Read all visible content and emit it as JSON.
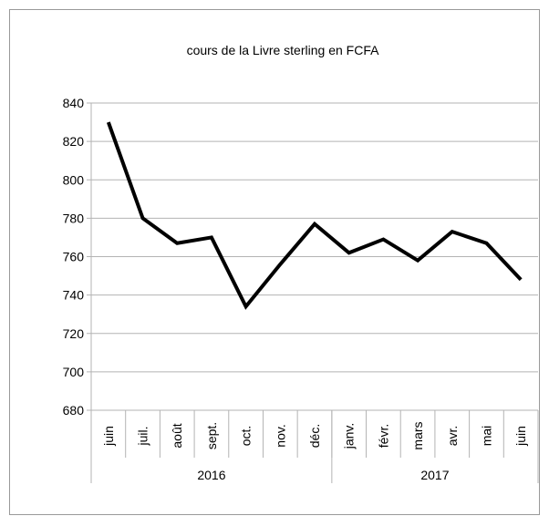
{
  "chart_data": {
    "type": "line",
    "title": "cours de la Livre sterling en FCFA",
    "categories": [
      "juin",
      "juil.",
      "août",
      "sept.",
      "oct.",
      "nov.",
      "déc.",
      "janv.",
      "févr.",
      "mars",
      "avr.",
      "mai",
      "juin"
    ],
    "x_groups": [
      {
        "label": "2016",
        "span": 7
      },
      {
        "label": "2017",
        "span": 6
      }
    ],
    "values": [
      830,
      780,
      767,
      770,
      734,
      756,
      777,
      762,
      769,
      758,
      773,
      767,
      748
    ],
    "color": "#000000",
    "ylim": [
      680,
      840
    ],
    "yticks": [
      680,
      700,
      720,
      740,
      760,
      780,
      800,
      820,
      840
    ],
    "grid": true
  }
}
